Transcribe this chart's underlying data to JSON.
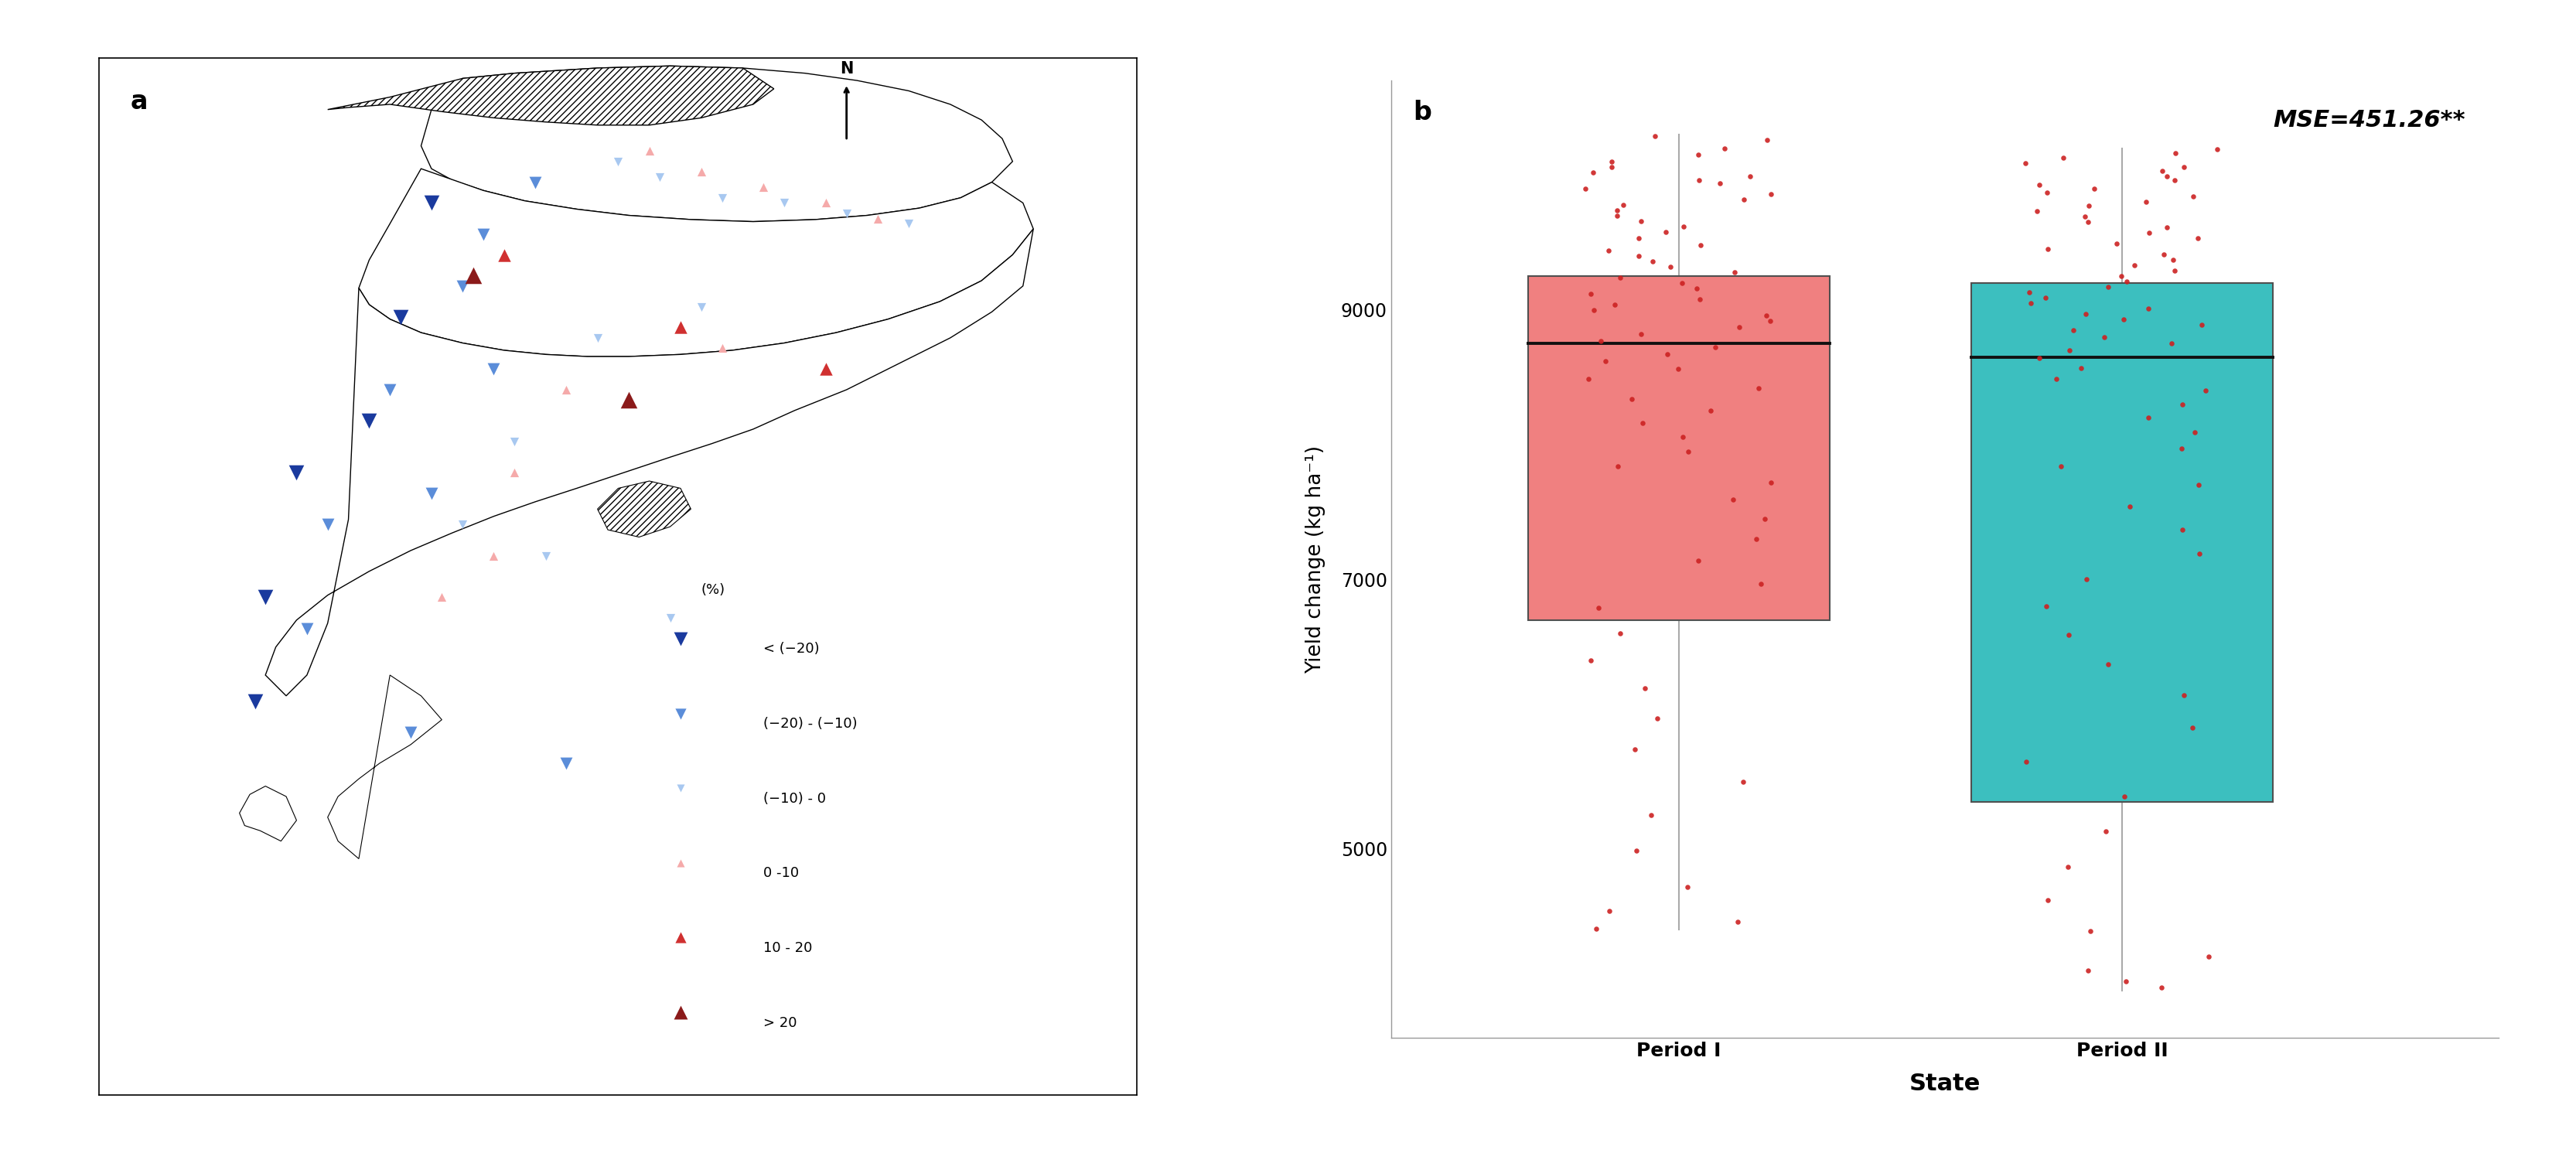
{
  "title_a": "a",
  "title_b": "b",
  "mse_text": "MSE=451.26**",
  "ylabel": "Yield change (kg ha⁻¹)",
  "xlabel": "State",
  "xtick_labels": [
    "Period I",
    "Period II"
  ],
  "yticks": [
    5000,
    7000,
    9000
  ],
  "box1_color": "#F08080",
  "box2_color": "#3CBFBF",
  "box_edge_color": "#505050",
  "scatter_color": "#CC2222",
  "period1_stats": {
    "q1": 6700,
    "median": 8750,
    "q3": 9250,
    "whisker_low": 4400,
    "whisker_high": 10300
  },
  "period2_stats": {
    "q1": 5350,
    "median": 8650,
    "q3": 9200,
    "whisker_low": 3950,
    "whisker_high": 10200
  },
  "period1_points": [
    10290,
    10260,
    10200,
    10150,
    10100,
    10060,
    10020,
    9990,
    9960,
    9940,
    9900,
    9860,
    9820,
    9780,
    9740,
    9700,
    9660,
    9620,
    9580,
    9530,
    9480,
    9440,
    9400,
    9360,
    9320,
    9280,
    9240,
    9200,
    9160,
    9120,
    9080,
    9040,
    9000,
    8960,
    8920,
    8870,
    8820,
    8770,
    8720,
    8670,
    8620,
    8560,
    8490,
    8420,
    8340,
    8250,
    8160,
    8060,
    7950,
    7840,
    7720,
    7590,
    7450,
    7300,
    7140,
    6970,
    6790,
    6600,
    6400,
    6190,
    5970,
    5740,
    5500,
    5250,
    4990,
    4720,
    4540,
    4460,
    4410
  ],
  "period2_points": [
    10190,
    10160,
    10130,
    10090,
    10060,
    10030,
    9990,
    9960,
    9930,
    9900,
    9870,
    9840,
    9800,
    9770,
    9730,
    9690,
    9650,
    9610,
    9570,
    9530,
    9490,
    9450,
    9410,
    9370,
    9330,
    9290,
    9250,
    9210,
    9170,
    9130,
    9090,
    9050,
    9010,
    8970,
    8930,
    8890,
    8850,
    8800,
    8750,
    8700,
    8640,
    8570,
    8490,
    8400,
    8300,
    8200,
    8090,
    7970,
    7840,
    7700,
    7540,
    7370,
    7190,
    7000,
    6800,
    6590,
    6370,
    6140,
    5900,
    5650,
    5390,
    5130,
    4870,
    4620,
    4390,
    4200,
    4100,
    4020,
    3970
  ],
  "legend_items": [
    {
      "label": "< (−20)",
      "color": "#1A3A9E",
      "size": 220,
      "marker": "v"
    },
    {
      "label": "(−20) - (−10)",
      "color": "#5B8DD9",
      "size": 140,
      "marker": "v"
    },
    {
      "label": "(−10) - 0",
      "color": "#A8C8F0",
      "size": 70,
      "marker": "v"
    },
    {
      "label": "0 -10",
      "color": "#F5AAAA",
      "size": 70,
      "marker": "^"
    },
    {
      "label": "10 - 20",
      "color": "#D03030",
      "size": 140,
      "marker": "^"
    },
    {
      "label": "> 20",
      "color": "#8B1A1A",
      "size": 220,
      "marker": "^"
    }
  ],
  "map_xlim": [
    0,
    10
  ],
  "map_ylim": [
    0,
    10
  ],
  "heilongjiang": {
    "x": [
      3.5,
      4.0,
      4.8,
      5.5,
      6.2,
      6.8,
      7.3,
      7.8,
      8.2,
      8.5,
      8.7,
      8.8,
      8.6,
      8.3,
      7.9,
      7.4,
      6.9,
      6.3,
      5.7,
      5.1,
      4.6,
      4.1,
      3.7,
      3.4,
      3.2,
      3.1,
      3.2,
      3.5
    ],
    "y": [
      9.8,
      9.85,
      9.9,
      9.92,
      9.9,
      9.85,
      9.78,
      9.68,
      9.55,
      9.4,
      9.22,
      9.0,
      8.8,
      8.65,
      8.55,
      8.48,
      8.44,
      8.42,
      8.44,
      8.48,
      8.54,
      8.62,
      8.72,
      8.82,
      8.93,
      9.15,
      9.5,
      9.8
    ]
  },
  "inner_mongolia_hatch": {
    "x": [
      2.2,
      2.8,
      3.5,
      4.0,
      4.8,
      5.5,
      6.2,
      6.5,
      6.3,
      5.8,
      5.3,
      4.8,
      4.3,
      3.8,
      3.3,
      2.8,
      2.4,
      2.2
    ],
    "y": [
      9.5,
      9.62,
      9.8,
      9.85,
      9.9,
      9.92,
      9.9,
      9.7,
      9.55,
      9.42,
      9.35,
      9.35,
      9.38,
      9.42,
      9.48,
      9.55,
      9.52,
      9.5
    ]
  },
  "jilin": {
    "x": [
      3.1,
      3.7,
      4.1,
      4.6,
      5.1,
      5.7,
      6.3,
      6.9,
      7.4,
      7.9,
      8.3,
      8.6,
      8.9,
      9.0,
      8.8,
      8.5,
      8.1,
      7.6,
      7.1,
      6.6,
      6.1,
      5.6,
      5.1,
      4.7,
      4.3,
      3.9,
      3.5,
      3.1,
      2.8,
      2.6,
      2.5,
      2.6,
      2.8,
      3.1
    ],
    "y": [
      8.93,
      8.72,
      8.62,
      8.54,
      8.48,
      8.44,
      8.42,
      8.44,
      8.48,
      8.55,
      8.65,
      8.8,
      8.6,
      8.35,
      8.1,
      7.85,
      7.65,
      7.48,
      7.35,
      7.25,
      7.18,
      7.14,
      7.12,
      7.12,
      7.14,
      7.18,
      7.25,
      7.35,
      7.48,
      7.62,
      7.78,
      8.05,
      8.4,
      8.93
    ]
  },
  "liaoning": {
    "x": [
      2.5,
      2.6,
      2.8,
      3.1,
      3.5,
      3.9,
      4.3,
      4.7,
      5.1,
      5.6,
      6.1,
      6.6,
      7.1,
      7.6,
      8.1,
      8.5,
      8.8,
      9.0,
      8.9,
      8.6,
      8.2,
      7.7,
      7.2,
      6.7,
      6.3,
      5.9,
      5.5,
      5.2,
      4.9,
      4.6,
      4.2,
      3.8,
      3.4,
      3.0,
      2.6,
      2.2,
      1.9,
      1.7,
      1.6,
      1.8,
      2.0,
      2.2,
      2.4,
      2.5
    ],
    "y": [
      7.78,
      7.62,
      7.48,
      7.35,
      7.25,
      7.18,
      7.14,
      7.12,
      7.12,
      7.14,
      7.18,
      7.25,
      7.35,
      7.48,
      7.65,
      7.85,
      8.1,
      8.35,
      7.8,
      7.55,
      7.3,
      7.05,
      6.8,
      6.6,
      6.42,
      6.28,
      6.15,
      6.05,
      5.95,
      5.85,
      5.72,
      5.58,
      5.42,
      5.25,
      5.05,
      4.82,
      4.58,
      4.32,
      4.05,
      3.85,
      4.05,
      4.55,
      5.55,
      7.78
    ]
  },
  "dalian_peninsula": {
    "x": [
      2.8,
      3.1,
      3.3,
      3.0,
      2.7,
      2.5,
      2.3,
      2.2,
      2.3,
      2.5,
      2.8
    ],
    "y": [
      4.05,
      3.85,
      3.62,
      3.38,
      3.2,
      3.05,
      2.88,
      2.68,
      2.45,
      2.28,
      4.05
    ]
  },
  "small_island": {
    "x": [
      1.55,
      1.75,
      1.9,
      1.8,
      1.6,
      1.45,
      1.35,
      1.4,
      1.55
    ],
    "y": [
      2.55,
      2.45,
      2.65,
      2.88,
      2.98,
      2.9,
      2.72,
      2.6,
      2.55
    ]
  },
  "liaodong_hatch": {
    "x": [
      4.9,
      5.2,
      5.5,
      5.7,
      5.6,
      5.3,
      5.0,
      4.8,
      4.9
    ],
    "y": [
      5.45,
      5.38,
      5.48,
      5.65,
      5.85,
      5.92,
      5.85,
      5.65,
      5.45
    ]
  }
}
